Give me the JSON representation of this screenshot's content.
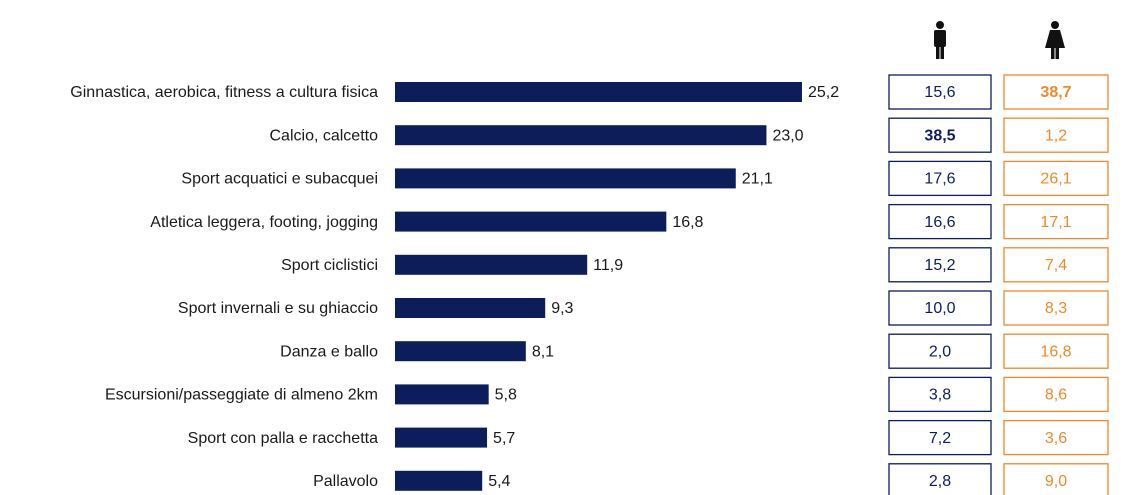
{
  "chart_data": {
    "type": "bar",
    "categories": [
      "Ginnastica, aerobica, fitness a cultura fisica",
      "Calcio, calcetto",
      "Sport acquatici e subacquei",
      "Atletica leggera, footing, jogging",
      "Sport ciclistici",
      "Sport invernali e su ghiaccio",
      "Danza e ballo",
      "Escursioni/passeggiate di almeno 2km",
      "Sport con palla e racchetta",
      "Pallavolo"
    ],
    "values": [
      25.2,
      23.0,
      21.1,
      16.8,
      11.9,
      9.3,
      8.1,
      5.8,
      5.7,
      5.4
    ],
    "value_labels": [
      "25,2",
      "23,0",
      "21,1",
      "16,8",
      "11,9",
      "9,3",
      "8,1",
      "5,8",
      "5,7",
      "5,4"
    ],
    "color": "#0d1d5c",
    "male": {
      "color": "#0d1d5c",
      "values": [
        15.6,
        38.5,
        17.6,
        16.6,
        15.2,
        10.0,
        2.0,
        3.8,
        7.2,
        2.8
      ],
      "value_labels": [
        "15,6",
        "38,5",
        "17,6",
        "16,6",
        "15,2",
        "10,0",
        "2,0",
        "3,8",
        "7,2",
        "2,8"
      ]
    },
    "female": {
      "color": "#f0892a",
      "values": [
        38.7,
        1.2,
        26.1,
        17.1,
        7.4,
        8.3,
        16.8,
        8.6,
        3.6,
        9.0
      ],
      "value_labels": [
        "38,7",
        "1,2",
        "26,1",
        "17,1",
        "7,4",
        "8,3",
        "16,8",
        "8,6",
        "3,6",
        "9,0"
      ]
    }
  }
}
